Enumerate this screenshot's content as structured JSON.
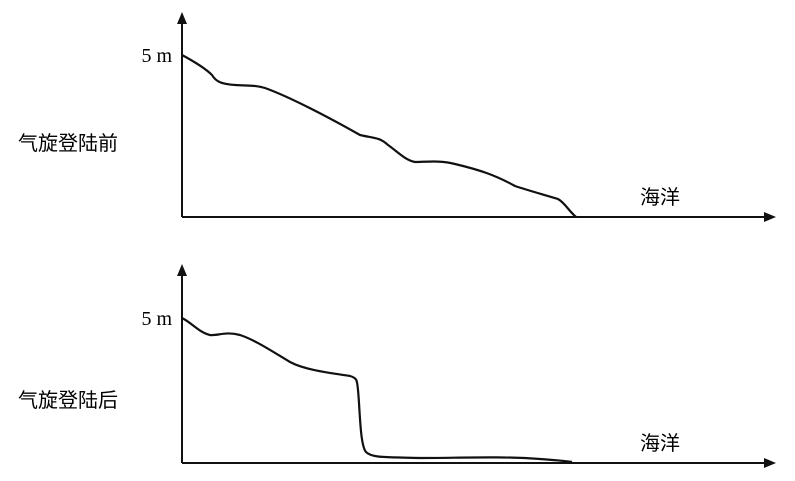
{
  "panels": [
    {
      "y_label": "5 m",
      "title": "气旋登陆前",
      "x_label": "海洋"
    },
    {
      "y_label": "5 m",
      "title": "气旋登陆后",
      "x_label": "海洋"
    }
  ]
}
